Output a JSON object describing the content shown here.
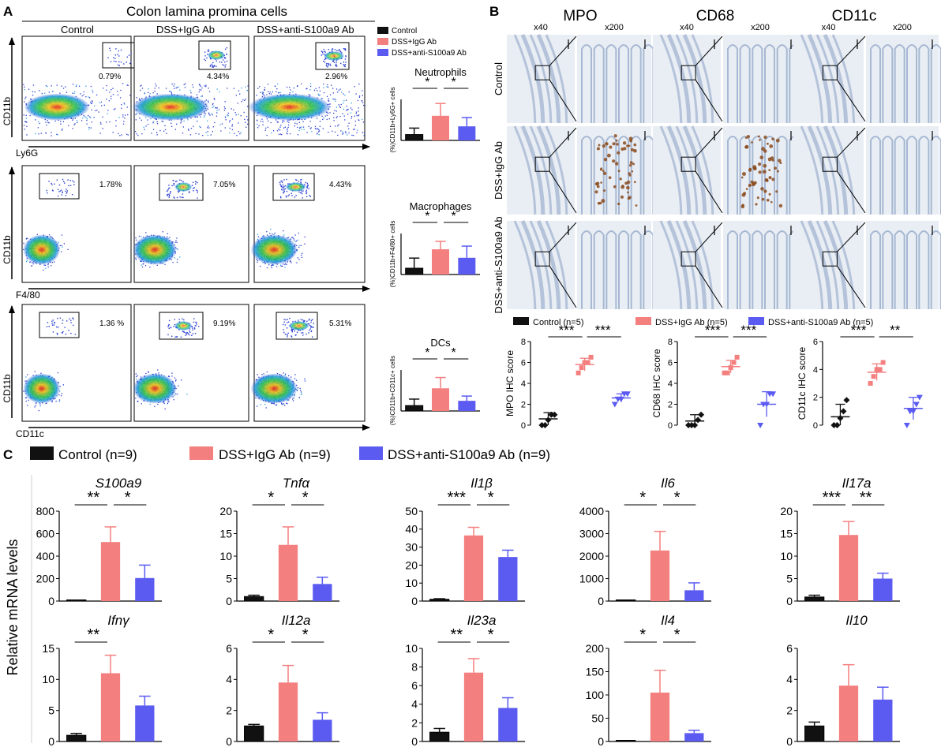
{
  "colors": {
    "control": "#111111",
    "igg": "#f47f7f",
    "anti": "#5b5bf2",
    "tissue_bg": "#e9eef4",
    "tissue_line": "#8aa1c4",
    "stain": "#8b4a1c"
  },
  "panel_a": {
    "letter": "A",
    "title": "Colon lamina promina cells",
    "columns": [
      "Control",
      "DSS+IgG Ab",
      "DSS+anti-S100a9 Ab"
    ],
    "legend": [
      "Control",
      "DSS+IgG Ab",
      "DSS+anti-S100a9 Ab"
    ],
    "rows": [
      {
        "ylabel": "CD11b",
        "xlabel": "Ly6G",
        "percents": [
          "0.79%",
          "4.34%",
          "2.96%"
        ],
        "bar_title": "Neutrophils",
        "bar_ylabel": "(%)CD11b+Ly6G+ cells",
        "sig": [
          "*",
          "*"
        ]
      },
      {
        "ylabel": "CD11b",
        "xlabel": "F4/80",
        "percents": [
          "1.78%",
          "7.05%",
          "4.43%"
        ],
        "bar_title": "Macrophages",
        "bar_ylabel": "(%)CD11b+F4/80+ cells",
        "sig": [
          "*",
          "*"
        ]
      },
      {
        "ylabel": "CD11b",
        "xlabel": "CD11c",
        "percents": [
          "1.36 %",
          "9.19%",
          "5.31%"
        ],
        "bar_title": "DCs",
        "bar_ylabel": "(%)CD11b+CD11c+ cells",
        "sig": [
          "*",
          "*"
        ]
      }
    ]
  },
  "panel_b": {
    "letter": "B",
    "markers": [
      "MPO",
      "CD68",
      "CD11c"
    ],
    "mags": [
      "x40",
      "x200"
    ],
    "rows": [
      "Control",
      "DSS+IgG Ab",
      "DSS+anti-S100a9 Ab"
    ],
    "legend": [
      "Control (n=5)",
      "DSS+IgG Ab (n=5)",
      "DSS+anti-S100a9 Ab (n=5)"
    ]
  },
  "panel_c": {
    "letter": "C",
    "legend": [
      "Control (n=9)",
      "DSS+IgG Ab (n=9)",
      "DSS+anti-S100a9 Ab (n=9)"
    ],
    "ylabel": "Relative mRNA levels"
  },
  "chart_data": [
    {
      "type": "bar",
      "title": "Neutrophils",
      "ylabel": "(%)CD11b+Ly6G+ cells",
      "categories": [
        "Control",
        "DSS+IgG Ab",
        "DSS+anti-S100a9 Ab"
      ],
      "values": [
        1.0,
        4.2,
        2.4
      ],
      "errors": [
        1.1,
        2.1,
        1.5
      ],
      "ylim": [
        0,
        7
      ],
      "sig": [
        "*",
        "*"
      ]
    },
    {
      "type": "bar",
      "title": "Macrophages",
      "ylabel": "(%)CD11b+F4/80+ cells",
      "categories": [
        "Control",
        "DSS+IgG Ab",
        "DSS+anti-S100a9 Ab"
      ],
      "values": [
        2.0,
        8.0,
        5.3
      ],
      "errors": [
        3.2,
        2.5,
        3.7
      ],
      "ylim": [
        0,
        13
      ],
      "sig": [
        "*",
        "*"
      ]
    },
    {
      "type": "bar",
      "title": "DCs",
      "ylabel": "(%)CD11b+CD11c+ cells",
      "categories": [
        "Control",
        "DSS+IgG Ab",
        "DSS+anti-S100a9 Ab"
      ],
      "values": [
        2.5,
        10.5,
        4.7
      ],
      "errors": [
        3.0,
        5.0,
        2.2
      ],
      "ylim": [
        0,
        19
      ],
      "sig": [
        "*",
        "*"
      ]
    },
    {
      "type": "scatter",
      "ylabel": "MPO IHC score",
      "ylim": [
        0,
        8
      ],
      "yticks": [
        0,
        2,
        4,
        6,
        8
      ],
      "groups": [
        {
          "name": "Control",
          "mean": 0.6,
          "sd": 0.6,
          "points": [
            0,
            0,
            0.5,
            1,
            1
          ]
        },
        {
          "name": "DSS+IgG Ab",
          "mean": 5.8,
          "sd": 0.6,
          "points": [
            5,
            5.5,
            6,
            6,
            6.5
          ]
        },
        {
          "name": "DSS+anti-S100a9 Ab",
          "mean": 2.6,
          "sd": 0.4,
          "points": [
            2,
            2.5,
            2.5,
            3,
            3
          ]
        }
      ],
      "sig": [
        "***",
        "***"
      ]
    },
    {
      "type": "scatter",
      "ylabel": "CD68 IHC score",
      "ylim": [
        0,
        8
      ],
      "yticks": [
        0,
        2,
        4,
        6,
        8
      ],
      "groups": [
        {
          "name": "Control",
          "mean": 0.4,
          "sd": 0.6,
          "points": [
            0,
            0,
            0,
            0.5,
            1
          ]
        },
        {
          "name": "DSS+IgG Ab",
          "mean": 5.6,
          "sd": 0.6,
          "points": [
            5,
            5,
            5.5,
            6,
            6.5
          ]
        },
        {
          "name": "DSS+anti-S100a9 Ab",
          "mean": 2.0,
          "sd": 1.2,
          "points": [
            0,
            2,
            2,
            3,
            3
          ]
        }
      ],
      "sig": [
        "***",
        "***"
      ]
    },
    {
      "type": "scatter",
      "ylabel": "CD11c IHC score",
      "ylim": [
        0,
        6
      ],
      "yticks": [
        0,
        2,
        4,
        6
      ],
      "groups": [
        {
          "name": "Control",
          "mean": 0.6,
          "sd": 0.9,
          "points": [
            0,
            0,
            0.5,
            1,
            1.8
          ]
        },
        {
          "name": "DSS+IgG Ab",
          "mean": 3.8,
          "sd": 0.6,
          "points": [
            3,
            3.5,
            4,
            4,
            4.5
          ]
        },
        {
          "name": "DSS+anti-S100a9 Ab",
          "mean": 1.2,
          "sd": 0.8,
          "points": [
            0,
            1,
            1,
            1.5,
            2
          ]
        }
      ],
      "sig": [
        "***",
        "**"
      ]
    },
    {
      "type": "bar",
      "title": "S100a9",
      "ylim": [
        0,
        800
      ],
      "yticks": [
        0,
        200,
        400,
        600,
        800
      ],
      "ytick_labels": [
        "0",
        "200",
        "400",
        "600",
        "800"
      ],
      "values": [
        2,
        525,
        205
      ],
      "errors": [
        1,
        135,
        115
      ],
      "sig": [
        "**",
        "*"
      ]
    },
    {
      "type": "bar",
      "title": "Tnfα",
      "ylim": [
        0,
        20
      ],
      "yticks": [
        0,
        5,
        10,
        15,
        20
      ],
      "ytick_labels": [
        "0",
        "5",
        "10",
        "15",
        "20"
      ],
      "values": [
        1,
        12.5,
        3.8
      ],
      "errors": [
        0.3,
        4,
        1.5
      ],
      "sig": [
        "*",
        "*"
      ]
    },
    {
      "type": "bar",
      "title": "Il1β",
      "ylim": [
        0,
        50
      ],
      "yticks": [
        0,
        10,
        20,
        30,
        40,
        50
      ],
      "ytick_labels": [
        "0",
        "10",
        "20",
        "30",
        "40",
        "50"
      ],
      "values": [
        1,
        36.5,
        24.5
      ],
      "errors": [
        0.3,
        4.5,
        3.8
      ],
      "sig": [
        "***",
        "*"
      ]
    },
    {
      "type": "bar",
      "title": "Il6",
      "ylim": [
        0,
        4000
      ],
      "yticks": [
        0,
        1000,
        2000,
        3000,
        4000
      ],
      "ytick_labels": [
        "0",
        "1000",
        "2000",
        "3000",
        "4000"
      ],
      "values": [
        0,
        2250,
        480
      ],
      "errors": [
        0,
        850,
        330
      ],
      "sig": [
        "*",
        "*"
      ]
    },
    {
      "type": "bar",
      "title": "Il17a",
      "ylim": [
        0,
        20
      ],
      "yticks": [
        0,
        5,
        10,
        15,
        20
      ],
      "ytick_labels": [
        "0",
        "5",
        "10",
        "15",
        "20"
      ],
      "values": [
        0.9,
        14.7,
        5
      ],
      "errors": [
        0.4,
        3,
        1.2
      ],
      "sig": [
        "***",
        "**"
      ]
    },
    {
      "type": "bar",
      "title": "Ifnγ",
      "ylim": [
        0,
        15
      ],
      "yticks": [
        0,
        5,
        10,
        15
      ],
      "ytick_labels": [
        "0",
        "5",
        "10",
        "15"
      ],
      "values": [
        1,
        11,
        5.8
      ],
      "errors": [
        0.3,
        2.9,
        1.5
      ],
      "sig": [
        "**",
        ""
      ]
    },
    {
      "type": "bar",
      "title": "Il12a",
      "ylim": [
        0,
        6
      ],
      "yticks": [
        0,
        2,
        4,
        6
      ],
      "ytick_labels": [
        "0",
        "2",
        "4",
        "6"
      ],
      "values": [
        1,
        3.8,
        1.4
      ],
      "errors": [
        0.1,
        1.1,
        0.45
      ],
      "sig": [
        "*",
        "*"
      ]
    },
    {
      "type": "bar",
      "title": "Il23a",
      "ylim": [
        0,
        10
      ],
      "yticks": [
        0,
        2,
        4,
        6,
        8,
        10
      ],
      "ytick_labels": [
        "0",
        "2",
        "4",
        "6",
        "8",
        "10"
      ],
      "values": [
        1,
        7.4,
        3.6
      ],
      "errors": [
        0.4,
        1.5,
        1.1
      ],
      "sig": [
        "**",
        "*"
      ]
    },
    {
      "type": "bar",
      "title": "Il4",
      "ylim": [
        0,
        200
      ],
      "yticks": [
        0,
        50,
        100,
        150,
        200
      ],
      "ytick_labels": [
        "0",
        "50",
        "100",
        "150",
        "200"
      ],
      "values": [
        1,
        105,
        18
      ],
      "errors": [
        0,
        48,
        6
      ],
      "sig": [
        "*",
        "*"
      ]
    },
    {
      "type": "bar",
      "title": "Il10",
      "ylim": [
        0,
        6
      ],
      "yticks": [
        0,
        2,
        4,
        6
      ],
      "ytick_labels": [
        "0",
        "2",
        "4",
        "6"
      ],
      "values": [
        1,
        3.6,
        2.7
      ],
      "errors": [
        0.25,
        1.35,
        0.8
      ],
      "sig": [
        "",
        ""
      ]
    }
  ]
}
